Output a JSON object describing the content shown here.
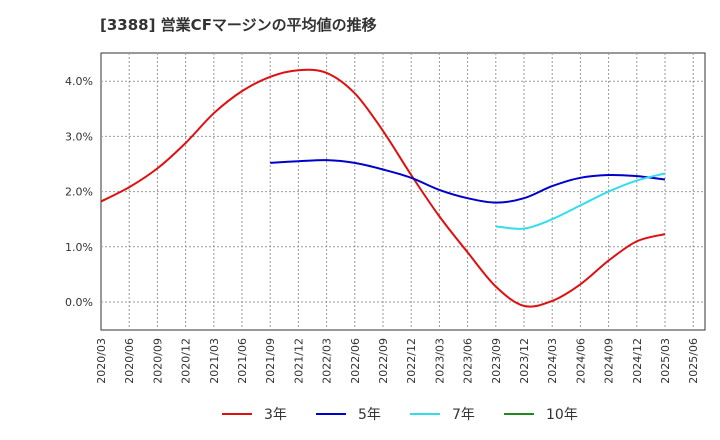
{
  "chart_data": {
    "type": "line",
    "title": "[3388]  営業CFマージンの平均値の推移",
    "y_unit": "%",
    "ylim": [
      -0.5,
      4.5
    ],
    "y_ticks": [
      "4.0%",
      "3.0%",
      "2.0%",
      "1.0%",
      "0.0%"
    ],
    "y_tick_values": [
      4.0,
      3.0,
      2.0,
      1.0,
      0.0
    ],
    "x_ticks": [
      "2020/03",
      "2020/06",
      "2020/09",
      "2020/12",
      "2021/03",
      "2021/06",
      "2021/09",
      "2021/12",
      "2022/03",
      "2022/06",
      "2022/09",
      "2022/12",
      "2023/03",
      "2023/06",
      "2023/09",
      "2023/12",
      "2024/03",
      "2024/06",
      "2024/09",
      "2024/12",
      "2025/03",
      "2025/06"
    ],
    "grid": true,
    "legend_position": "bottom",
    "series": [
      {
        "name": "3年",
        "color": "#dd1111",
        "x": [
          "2020/03",
          "2020/06",
          "2020/09",
          "2020/12",
          "2021/03",
          "2021/06",
          "2021/09",
          "2021/12",
          "2022/03",
          "2022/06",
          "2022/09",
          "2022/12",
          "2023/03",
          "2023/06",
          "2023/09",
          "2023/12",
          "2024/03",
          "2024/06",
          "2024/09",
          "2024/12",
          "2025/03"
        ],
        "values": [
          1.82,
          2.08,
          2.42,
          2.88,
          3.42,
          3.82,
          4.08,
          4.2,
          4.15,
          3.78,
          3.1,
          2.3,
          1.55,
          0.9,
          0.28,
          -0.07,
          0.02,
          0.32,
          0.75,
          1.1,
          1.23
        ]
      },
      {
        "name": "5年",
        "color": "#0000cc",
        "x": [
          "2021/09",
          "2021/12",
          "2022/03",
          "2022/06",
          "2022/09",
          "2022/12",
          "2023/03",
          "2023/06",
          "2023/09",
          "2023/12",
          "2024/03",
          "2024/06",
          "2024/09",
          "2024/12",
          "2025/03"
        ],
        "values": [
          2.52,
          2.55,
          2.57,
          2.52,
          2.4,
          2.25,
          2.03,
          1.88,
          1.8,
          1.88,
          2.1,
          2.25,
          2.3,
          2.28,
          2.22
        ]
      },
      {
        "name": "7年",
        "color": "#33ddee",
        "x": [
          "2023/09",
          "2023/12",
          "2024/03",
          "2024/06",
          "2024/09",
          "2024/12",
          "2025/03"
        ],
        "values": [
          1.37,
          1.33,
          1.5,
          1.75,
          2.0,
          2.2,
          2.33
        ]
      },
      {
        "name": "10年",
        "color": "#228822",
        "x": [],
        "values": []
      }
    ]
  }
}
